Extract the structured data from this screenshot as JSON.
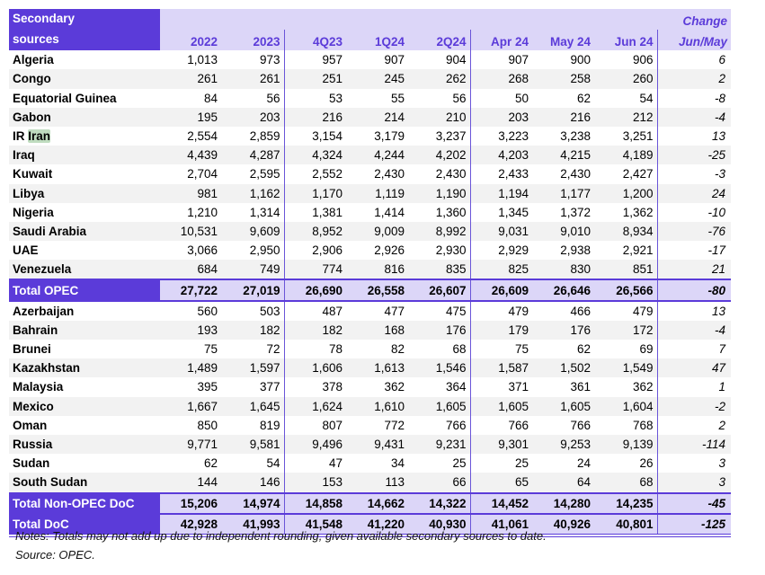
{
  "header": {
    "label_line1": "Secondary",
    "label_line2": "sources",
    "columns": [
      "2022",
      "2023",
      "4Q23",
      "1Q24",
      "2Q24",
      "Apr 24",
      "May 24",
      "Jun 24"
    ],
    "change_line1": "Change",
    "change_line2": "Jun/May"
  },
  "search_highlight": "Iran",
  "rows": [
    {
      "name": "Algeria",
      "values": [
        "1,013",
        "973",
        "957",
        "907",
        "904",
        "907",
        "900",
        "906"
      ],
      "change": "6"
    },
    {
      "name": "Congo",
      "values": [
        "261",
        "261",
        "251",
        "245",
        "262",
        "268",
        "258",
        "260"
      ],
      "change": "2"
    },
    {
      "name": "Equatorial Guinea",
      "values": [
        "84",
        "56",
        "53",
        "55",
        "56",
        "50",
        "62",
        "54"
      ],
      "change": "-8"
    },
    {
      "name": "Gabon",
      "values": [
        "195",
        "203",
        "216",
        "214",
        "210",
        "203",
        "216",
        "212"
      ],
      "change": "-4"
    },
    {
      "name": "IR Iran",
      "values": [
        "2,554",
        "2,859",
        "3,154",
        "3,179",
        "3,237",
        "3,223",
        "3,238",
        "3,251"
      ],
      "change": "13"
    },
    {
      "name": "Iraq",
      "values": [
        "4,439",
        "4,287",
        "4,324",
        "4,244",
        "4,202",
        "4,203",
        "4,215",
        "4,189"
      ],
      "change": "-25"
    },
    {
      "name": "Kuwait",
      "values": [
        "2,704",
        "2,595",
        "2,552",
        "2,430",
        "2,430",
        "2,433",
        "2,430",
        "2,427"
      ],
      "change": "-3"
    },
    {
      "name": "Libya",
      "values": [
        "981",
        "1,162",
        "1,170",
        "1,119",
        "1,190",
        "1,194",
        "1,177",
        "1,200"
      ],
      "change": "24"
    },
    {
      "name": "Nigeria",
      "values": [
        "1,210",
        "1,314",
        "1,381",
        "1,414",
        "1,360",
        "1,345",
        "1,372",
        "1,362"
      ],
      "change": "-10"
    },
    {
      "name": "Saudi Arabia",
      "values": [
        "10,531",
        "9,609",
        "8,952",
        "9,009",
        "8,992",
        "9,031",
        "9,010",
        "8,934"
      ],
      "change": "-76"
    },
    {
      "name": "UAE",
      "values": [
        "3,066",
        "2,950",
        "2,906",
        "2,926",
        "2,930",
        "2,929",
        "2,938",
        "2,921"
      ],
      "change": "-17"
    },
    {
      "name": "Venezuela",
      "values": [
        "684",
        "749",
        "774",
        "816",
        "835",
        "825",
        "830",
        "851"
      ],
      "change": "21"
    },
    {
      "name": "Total  OPEC",
      "values": [
        "27,722",
        "27,019",
        "26,690",
        "26,558",
        "26,607",
        "26,609",
        "26,646",
        "26,566"
      ],
      "change": "-80",
      "total": true
    },
    {
      "name": "Azerbaijan",
      "values": [
        "560",
        "503",
        "487",
        "477",
        "475",
        "479",
        "466",
        "479"
      ],
      "change": "13"
    },
    {
      "name": "Bahrain",
      "values": [
        "193",
        "182",
        "182",
        "168",
        "176",
        "179",
        "176",
        "172"
      ],
      "change": "-4"
    },
    {
      "name": "Brunei",
      "values": [
        "75",
        "72",
        "78",
        "82",
        "68",
        "75",
        "62",
        "69"
      ],
      "change": "7"
    },
    {
      "name": "Kazakhstan",
      "values": [
        "1,489",
        "1,597",
        "1,606",
        "1,613",
        "1,546",
        "1,587",
        "1,502",
        "1,549"
      ],
      "change": "47"
    },
    {
      "name": "Malaysia",
      "values": [
        "395",
        "377",
        "378",
        "362",
        "364",
        "371",
        "361",
        "362"
      ],
      "change": "1"
    },
    {
      "name": "Mexico",
      "values": [
        "1,667",
        "1,645",
        "1,624",
        "1,610",
        "1,605",
        "1,605",
        "1,605",
        "1,604"
      ],
      "change": "-2"
    },
    {
      "name": "Oman",
      "values": [
        "850",
        "819",
        "807",
        "772",
        "766",
        "766",
        "766",
        "768"
      ],
      "change": "2"
    },
    {
      "name": "Russia",
      "values": [
        "9,771",
        "9,581",
        "9,496",
        "9,431",
        "9,231",
        "9,301",
        "9,253",
        "9,139"
      ],
      "change": "-114"
    },
    {
      "name": "Sudan",
      "values": [
        "62",
        "54",
        "47",
        "34",
        "25",
        "25",
        "24",
        "26"
      ],
      "change": "3"
    },
    {
      "name": "South Sudan",
      "values": [
        "144",
        "146",
        "153",
        "113",
        "66",
        "65",
        "64",
        "68"
      ],
      "change": "3"
    },
    {
      "name": "Total Non-OPEC DoC",
      "values": [
        "15,206",
        "14,974",
        "14,858",
        "14,662",
        "14,322",
        "14,452",
        "14,280",
        "14,235"
      ],
      "change": "-45",
      "total": true
    },
    {
      "name": "Total DoC",
      "values": [
        "42,928",
        "41,993",
        "41,548",
        "41,220",
        "40,930",
        "41,061",
        "40,926",
        "40,801"
      ],
      "change": "-125",
      "total": true,
      "last": true
    }
  ],
  "notes": "Notes: Totals may not add up due to independent rounding, given available secondary sources to date.",
  "source": "Source: OPEC."
}
